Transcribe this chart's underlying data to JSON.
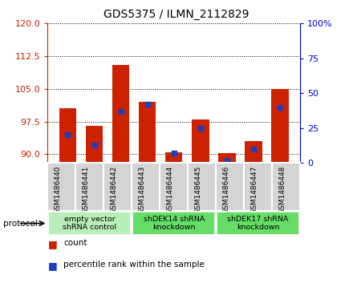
{
  "title": "GDS5375 / ILMN_2112829",
  "samples": [
    "GSM1486440",
    "GSM1486441",
    "GSM1486442",
    "GSM1486443",
    "GSM1486444",
    "GSM1486445",
    "GSM1486446",
    "GSM1486447",
    "GSM1486448"
  ],
  "count_values": [
    100.5,
    96.5,
    110.5,
    102.0,
    90.5,
    98.0,
    90.2,
    93.0,
    105.0
  ],
  "percentile_values": [
    20,
    13,
    37,
    42,
    7,
    25,
    2,
    10,
    40
  ],
  "ylim_left": [
    88,
    120
  ],
  "ylim_right": [
    0,
    100
  ],
  "yticks_left": [
    90,
    97.5,
    105,
    112.5,
    120
  ],
  "yticks_right": [
    0,
    25,
    50,
    75,
    100
  ],
  "bar_color": "#cc2200",
  "dot_color": "#1a3fbf",
  "bar_bottom": 88,
  "groups": [
    {
      "label": "empty vector\nshRNA control",
      "start": 0,
      "end": 3,
      "color": "#b8eeb8"
    },
    {
      "label": "shDEK14 shRNA\nknockdown",
      "start": 3,
      "end": 6,
      "color": "#66dd66"
    },
    {
      "label": "shDEK17 shRNA\nknockdown",
      "start": 6,
      "end": 9,
      "color": "#66dd66"
    }
  ],
  "protocol_label": "protocol",
  "legend_count_label": "count",
  "legend_pct_label": "percentile rank within the sample",
  "background_color": "#ffffff",
  "tick_color_left": "#cc2200",
  "tick_color_right": "#0000cc",
  "cell_color": "#d4d4d4",
  "cell_border_color": "#ffffff"
}
